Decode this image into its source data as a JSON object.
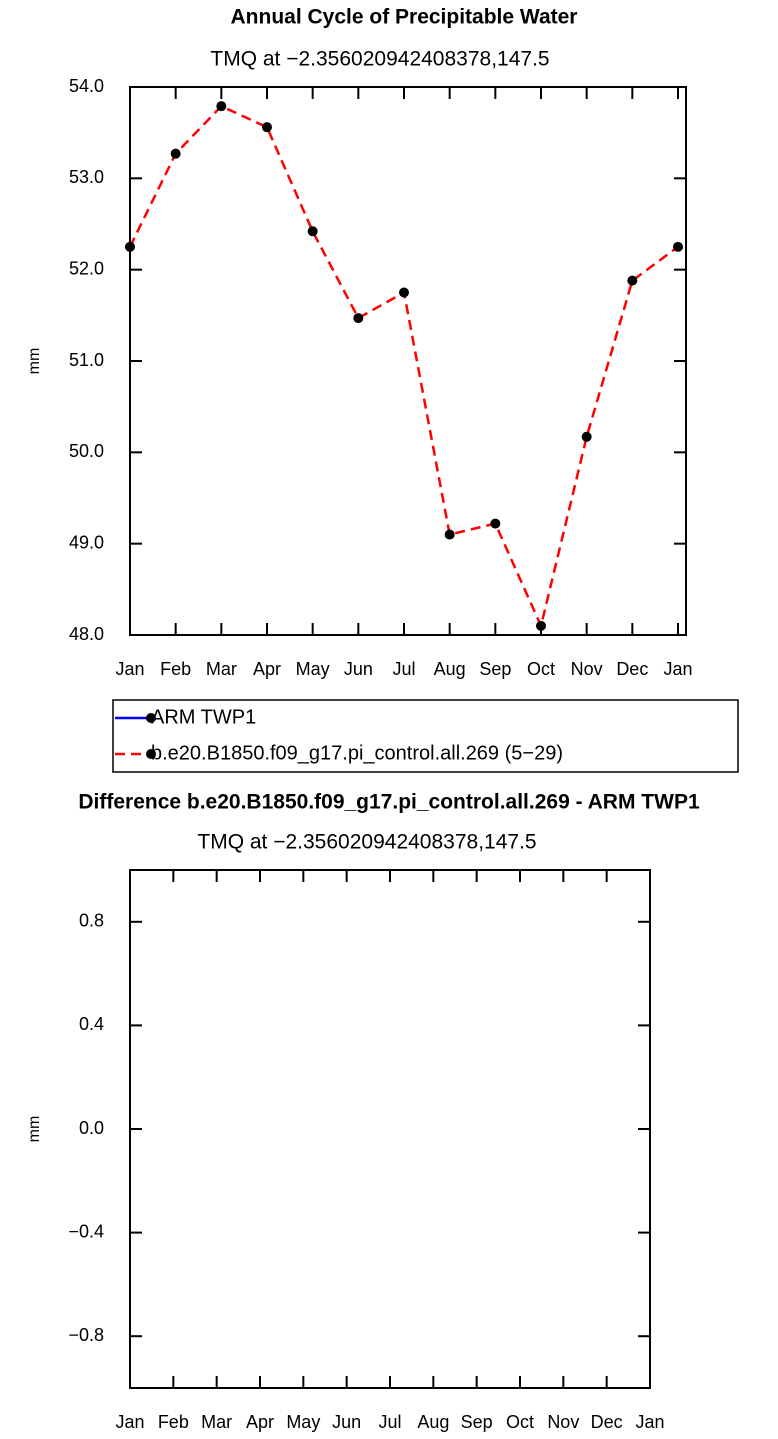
{
  "chart_data": [
    {
      "type": "line",
      "title": "Annual Cycle of Precipitable Water",
      "subtitle": "TMQ at −2.356020942408378,147.5",
      "y_label": "mm",
      "categories": [
        "Jan",
        "Feb",
        "Mar",
        "Apr",
        "May",
        "Jun",
        "Jul",
        "Aug",
        "Sep",
        "Oct",
        "Nov",
        "Dec",
        "Jan"
      ],
      "series": [
        {
          "name": "ARM TWP1",
          "color": "#0000ff",
          "dash": false,
          "values": [
            null,
            null,
            null,
            null,
            null,
            null,
            null,
            null,
            null,
            null,
            null,
            null,
            null
          ]
        },
        {
          "name": "b.e20.B1850.f09_g17.pi_control.all.269 (5−29)",
          "color": "#ff0000",
          "dash": true,
          "values": [
            52.25,
            53.27,
            53.79,
            53.56,
            52.42,
            51.47,
            51.75,
            49.1,
            49.22,
            48.1,
            50.17,
            51.88,
            52.25
          ]
        }
      ],
      "marker_color": "#000000",
      "ylim": [
        48,
        54
      ],
      "yticks": [
        {
          "value": 48,
          "label": "48.0"
        },
        {
          "value": 49,
          "label": "49.0"
        },
        {
          "value": 50,
          "label": "50.0"
        },
        {
          "value": 51,
          "label": "51.0"
        },
        {
          "value": 52,
          "label": "52.0"
        },
        {
          "value": 53,
          "label": "53.0"
        },
        {
          "value": 54,
          "label": "54.0"
        }
      ],
      "legend": "below"
    },
    {
      "type": "line",
      "title": "Difference b.e20.B1850.f09_g17.pi_control.all.269 - ARM TWP1",
      "subtitle": "TMQ at −2.356020942408378,147.5",
      "y_label": "mm",
      "categories": [
        "Jan",
        "Feb",
        "Mar",
        "Apr",
        "May",
        "Jun",
        "Jul",
        "Aug",
        "Sep",
        "Oct",
        "Nov",
        "Dec",
        "Jan"
      ],
      "series": [],
      "ylim": [
        -1,
        1
      ],
      "yticks": [
        {
          "value": -0.8,
          "label": "−0.8"
        },
        {
          "value": -0.4,
          "label": "−0.4"
        },
        {
          "value": 0,
          "label": "0.0"
        },
        {
          "value": 0.4,
          "label": "0.4"
        },
        {
          "value": 0.8,
          "label": "0.8"
        }
      ]
    }
  ]
}
